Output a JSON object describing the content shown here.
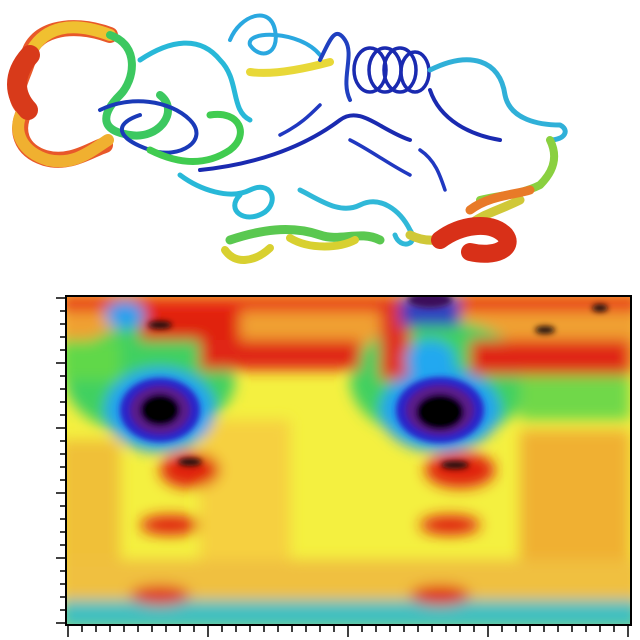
{
  "figure": {
    "panels": [
      {
        "kind": "protein-ribbon-structure",
        "color_scale": [
          "#1a1aa8",
          "#1e6fd0",
          "#22c3e0",
          "#2ecf6a",
          "#b6e03a",
          "#f0e03a",
          "#f07a22",
          "#d82a1a"
        ]
      },
      {
        "kind": "contour-heatmap",
        "color_scale": [
          "#000000",
          "#5a1a8a",
          "#2020c0",
          "#20a0f0",
          "#40e060",
          "#f0f040",
          "#f0a020",
          "#e02010"
        ],
        "frame_color": "#000000"
      }
    ]
  }
}
